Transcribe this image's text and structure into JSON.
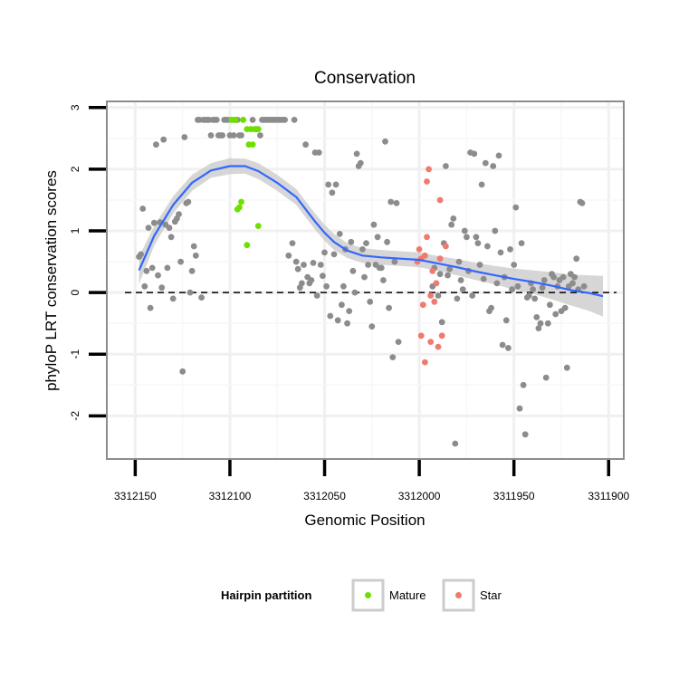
{
  "chart_data": {
    "type": "scatter",
    "title": "Conservation",
    "xlabel": "Genomic Position",
    "ylabel": "phyloP LRT conservation scores",
    "xlim": [
      3312165,
      3311892
    ],
    "ylim": [
      -2.7,
      3.1
    ],
    "x_reversed": true,
    "x_ticks": [
      3312150,
      3312100,
      3312050,
      3312000,
      3311950,
      3311900
    ],
    "x_tick_labels": [
      "3312150",
      "3312100",
      "3312050",
      "3312000",
      "3311950",
      "3311900"
    ],
    "y_ticks": [
      -2,
      -1,
      0,
      1,
      2,
      3
    ],
    "y_tick_labels": [
      "-2",
      "-1",
      "0",
      "1",
      "2",
      "3"
    ],
    "reference_line": {
      "y": 0,
      "style": "dashed",
      "color": "#000000"
    },
    "grid": true,
    "colors": {
      "background_points": "#8c8c8c",
      "Mature": "#6ee000",
      "Star": "#f07a70",
      "smooth": "#3366ff",
      "ribbon": "#cccccc"
    },
    "legend": {
      "title": "Hairpin partition",
      "position": "bottom",
      "entries": [
        {
          "label": "Mature",
          "color": "#6ee000"
        },
        {
          "label": "Star",
          "color": "#f07a70"
        }
      ]
    },
    "series": [
      {
        "name": "Other",
        "color": "#8c8c8c",
        "points": [
          [
            3312148,
            0.58
          ],
          [
            3312147,
            0.62
          ],
          [
            3312146,
            1.36
          ],
          [
            3312145,
            0.1
          ],
          [
            3312144,
            0.35
          ],
          [
            3312143,
            1.05
          ],
          [
            3312142,
            -0.25
          ],
          [
            3312141,
            0.4
          ],
          [
            3312140,
            1.13
          ],
          [
            3312139,
            2.4
          ],
          [
            3312138,
            0.28
          ],
          [
            3312137,
            1.14
          ],
          [
            3312136,
            0.08
          ],
          [
            3312135,
            2.48
          ],
          [
            3312134,
            1.1
          ],
          [
            3312133,
            0.4
          ],
          [
            3312132,
            1.05
          ],
          [
            3312131,
            0.9
          ],
          [
            3312130,
            -0.1
          ],
          [
            3312129,
            1.15
          ],
          [
            3312128,
            1.2
          ],
          [
            3312127,
            1.27
          ],
          [
            3312126,
            0.5
          ],
          [
            3312125,
            -1.28
          ],
          [
            3312124,
            2.52
          ],
          [
            3312123,
            1.45
          ],
          [
            3312122,
            1.47
          ],
          [
            3312121,
            0.0
          ],
          [
            3312120,
            0.35
          ],
          [
            3312119,
            0.75
          ],
          [
            3312118,
            0.6
          ],
          [
            3312117,
            2.8
          ],
          [
            3312116,
            2.8
          ],
          [
            3312115,
            -0.08
          ],
          [
            3312114,
            2.8
          ],
          [
            3312113,
            2.8
          ],
          [
            3312112,
            2.8
          ],
          [
            3312111,
            2.8
          ],
          [
            3312110,
            2.55
          ],
          [
            3312109,
            2.8
          ],
          [
            3312108,
            2.8
          ],
          [
            3312107,
            2.8
          ],
          [
            3312106,
            2.55
          ],
          [
            3312105,
            2.55
          ],
          [
            3312104,
            2.55
          ],
          [
            3312103,
            2.8
          ],
          [
            3312102,
            2.8
          ],
          [
            3312101,
            2.8
          ],
          [
            3312100,
            2.55
          ],
          [
            3312099,
            2.8
          ],
          [
            3312098,
            2.55
          ],
          [
            3312097,
            2.8
          ],
          [
            3312096,
            2.8
          ],
          [
            3312095,
            2.55
          ],
          [
            3312094,
            2.55
          ],
          [
            3312093,
            2.8
          ],
          [
            3312088,
            2.8
          ],
          [
            3312086,
            2.65
          ],
          [
            3312084,
            2.55
          ],
          [
            3312083,
            2.8
          ],
          [
            3312082,
            2.8
          ],
          [
            3312081,
            2.8
          ],
          [
            3312080,
            2.8
          ],
          [
            3312079,
            2.8
          ],
          [
            3312078,
            2.8
          ],
          [
            3312077,
            2.8
          ],
          [
            3312076,
            2.8
          ],
          [
            3312075,
            2.8
          ],
          [
            3312074,
            2.8
          ],
          [
            3312073,
            2.8
          ],
          [
            3312072,
            2.8
          ],
          [
            3312071,
            2.8
          ],
          [
            3312069,
            0.6
          ],
          [
            3312067,
            0.8
          ],
          [
            3312066,
            2.8
          ],
          [
            3312065,
            0.5
          ],
          [
            3312064,
            0.38
          ],
          [
            3312063,
            0.08
          ],
          [
            3312062,
            0.15
          ],
          [
            3312061,
            0.45
          ],
          [
            3312060,
            2.4
          ],
          [
            3312059,
            0.25
          ],
          [
            3312058,
            0.15
          ],
          [
            3312057,
            0.2
          ],
          [
            3312056,
            0.48
          ],
          [
            3312055,
            2.27
          ],
          [
            3312054,
            -0.05
          ],
          [
            3312053,
            2.27
          ],
          [
            3312052,
            0.45
          ],
          [
            3312051,
            0.27
          ],
          [
            3312050,
            0.65
          ],
          [
            3312049,
            0.1
          ],
          [
            3312048,
            1.75
          ],
          [
            3312047,
            -0.38
          ],
          [
            3312046,
            1.62
          ],
          [
            3312045,
            0.62
          ],
          [
            3312044,
            1.75
          ],
          [
            3312043,
            -0.45
          ],
          [
            3312042,
            0.95
          ],
          [
            3312041,
            -0.2
          ],
          [
            3312040,
            0.1
          ],
          [
            3312039,
            0.7
          ],
          [
            3312038,
            -0.5
          ],
          [
            3312037,
            -0.3
          ],
          [
            3312036,
            0.82
          ],
          [
            3312035,
            0.35
          ],
          [
            3312034,
            0.0
          ],
          [
            3312033,
            2.25
          ],
          [
            3312032,
            2.05
          ],
          [
            3312031,
            2.1
          ],
          [
            3312030,
            0.7
          ],
          [
            3312029,
            0.25
          ],
          [
            3312028,
            0.8
          ],
          [
            3312027,
            0.45
          ],
          [
            3312026,
            -0.15
          ],
          [
            3312025,
            -0.55
          ],
          [
            3312024,
            1.1
          ],
          [
            3312023,
            0.45
          ],
          [
            3312022,
            0.9
          ],
          [
            3312021,
            0.4
          ],
          [
            3312020,
            0.4
          ],
          [
            3312019,
            0.2
          ],
          [
            3312018,
            2.45
          ],
          [
            3312017,
            0.82
          ],
          [
            3312016,
            -0.25
          ],
          [
            3312015,
            1.47
          ],
          [
            3312014,
            -1.05
          ],
          [
            3312013,
            0.5
          ],
          [
            3312012,
            1.45
          ],
          [
            3312011,
            -0.8
          ],
          [
            3311993,
            0.1
          ],
          [
            3311992,
            0.4
          ],
          [
            3311991,
            0.15
          ],
          [
            3311990,
            -0.05
          ],
          [
            3311989,
            0.3
          ],
          [
            3311988,
            -0.48
          ],
          [
            3311987,
            0.8
          ],
          [
            3311986,
            2.05
          ],
          [
            3311985,
            0.28
          ],
          [
            3311984,
            0.38
          ],
          [
            3311983,
            1.1
          ],
          [
            3311982,
            1.2
          ],
          [
            3311981,
            -2.45
          ],
          [
            3311980,
            -0.1
          ],
          [
            3311979,
            0.5
          ],
          [
            3311978,
            0.2
          ],
          [
            3311977,
            0.05
          ],
          [
            3311976,
            1.0
          ],
          [
            3311975,
            0.9
          ],
          [
            3311974,
            0.35
          ],
          [
            3311973,
            2.27
          ],
          [
            3311972,
            -0.05
          ],
          [
            3311971,
            2.25
          ],
          [
            3311970,
            0.9
          ],
          [
            3311969,
            0.8
          ],
          [
            3311968,
            0.45
          ],
          [
            3311967,
            1.75
          ],
          [
            3311966,
            0.22
          ],
          [
            3311965,
            2.1
          ],
          [
            3311964,
            0.75
          ],
          [
            3311963,
            -0.3
          ],
          [
            3311962,
            -0.25
          ],
          [
            3311961,
            2.05
          ],
          [
            3311960,
            1.0
          ],
          [
            3311959,
            0.15
          ],
          [
            3311958,
            2.22
          ],
          [
            3311957,
            0.65
          ],
          [
            3311956,
            -0.85
          ],
          [
            3311955,
            0.25
          ],
          [
            3311954,
            -0.45
          ],
          [
            3311953,
            -0.9
          ],
          [
            3311952,
            0.7
          ],
          [
            3311951,
            0.05
          ],
          [
            3311950,
            0.45
          ],
          [
            3311949,
            1.38
          ],
          [
            3311948,
            0.1
          ],
          [
            3311947,
            -1.88
          ],
          [
            3311946,
            0.8
          ],
          [
            3311945,
            -1.5
          ],
          [
            3311944,
            -2.3
          ],
          [
            3311943,
            -0.08
          ],
          [
            3311942,
            -0.05
          ],
          [
            3311941,
            0.15
          ],
          [
            3311940,
            0.05
          ],
          [
            3311939,
            -0.1
          ],
          [
            3311938,
            -0.4
          ],
          [
            3311937,
            -0.58
          ],
          [
            3311936,
            -0.5
          ],
          [
            3311935,
            0.08
          ],
          [
            3311934,
            0.2
          ],
          [
            3311933,
            -1.38
          ],
          [
            3311932,
            -0.5
          ],
          [
            3311931,
            -0.2
          ],
          [
            3311930,
            0.3
          ],
          [
            3311929,
            0.25
          ],
          [
            3311928,
            -0.35
          ],
          [
            3311927,
            0.1
          ],
          [
            3311926,
            0.2
          ],
          [
            3311925,
            -0.3
          ],
          [
            3311924,
            0.25
          ],
          [
            3311923,
            -0.25
          ],
          [
            3311922,
            -1.22
          ],
          [
            3311921,
            0.1
          ],
          [
            3311920,
            0.3
          ],
          [
            3311919,
            0.15
          ],
          [
            3311918,
            0.25
          ],
          [
            3311917,
            0.55
          ],
          [
            3311916,
            0.05
          ],
          [
            3311915,
            1.47
          ],
          [
            3311914,
            1.45
          ],
          [
            3311913,
            0.1
          ]
        ]
      },
      {
        "name": "Mature",
        "color": "#6ee000",
        "points": [
          [
            3312099,
            2.8
          ],
          [
            3312098,
            2.8
          ],
          [
            3312097,
            2.8
          ],
          [
            3312093,
            2.8
          ],
          [
            3312091,
            2.65
          ],
          [
            3312090,
            2.4
          ],
          [
            3312089,
            2.65
          ],
          [
            3312088,
            2.4
          ],
          [
            3312087,
            2.65
          ],
          [
            3312085,
            2.65
          ],
          [
            3312096,
            1.35
          ],
          [
            3312095,
            1.38
          ],
          [
            3312094,
            1.47
          ],
          [
            3312091,
            0.77
          ],
          [
            3312085,
            1.08
          ]
        ]
      },
      {
        "name": "Star",
        "color": "#f07a70",
        "points": [
          [
            3312001,
            0.5
          ],
          [
            3312000,
            0.7
          ],
          [
            3311999,
            -0.7
          ],
          [
            3311998,
            -0.2
          ],
          [
            3311997,
            0.6
          ],
          [
            3311996,
            1.8
          ],
          [
            3311995,
            2.0
          ],
          [
            3311994,
            -0.05
          ],
          [
            3311993,
            0.35
          ],
          [
            3311992,
            -0.15
          ],
          [
            3311991,
            0.15
          ],
          [
            3311990,
            -0.88
          ],
          [
            3311989,
            1.5
          ],
          [
            3311988,
            -0.7
          ],
          [
            3311997,
            -1.13
          ],
          [
            3311994,
            -0.8
          ],
          [
            3311989,
            0.55
          ],
          [
            3311986,
            0.75
          ],
          [
            3311999,
            0.55
          ],
          [
            3311996,
            0.9
          ]
        ]
      }
    ],
    "smooth_curve": {
      "color": "#3366ff",
      "x": [
        3312148,
        3312140,
        3312130,
        3312120,
        3312110,
        3312100,
        3312092,
        3312085,
        3312075,
        3312065,
        3312055,
        3312050,
        3312045,
        3312038,
        3312030,
        3312020,
        3312010,
        3312000,
        3311990,
        3311980,
        3311970,
        3311960,
        3311950,
        3311940,
        3311930,
        3311920,
        3311910,
        3311903
      ],
      "y": [
        0.36,
        0.92,
        1.42,
        1.78,
        1.98,
        2.05,
        2.05,
        1.97,
        1.78,
        1.55,
        1.15,
        0.97,
        0.82,
        0.68,
        0.6,
        0.57,
        0.55,
        0.53,
        0.47,
        0.41,
        0.34,
        0.28,
        0.22,
        0.17,
        0.11,
        0.04,
        -0.01,
        -0.06
      ],
      "upper": [
        0.58,
        1.08,
        1.56,
        1.91,
        2.1,
        2.18,
        2.17,
        2.1,
        1.91,
        1.68,
        1.28,
        1.1,
        0.95,
        0.8,
        0.72,
        0.69,
        0.67,
        0.65,
        0.59,
        0.54,
        0.48,
        0.43,
        0.39,
        0.36,
        0.33,
        0.29,
        0.28,
        0.27
      ],
      "lower": [
        0.14,
        0.76,
        1.28,
        1.65,
        1.86,
        1.92,
        1.93,
        1.84,
        1.65,
        1.42,
        1.02,
        0.84,
        0.69,
        0.56,
        0.48,
        0.45,
        0.43,
        0.41,
        0.35,
        0.28,
        0.2,
        0.13,
        0.05,
        -0.02,
        -0.11,
        -0.21,
        -0.3,
        -0.39
      ]
    }
  }
}
